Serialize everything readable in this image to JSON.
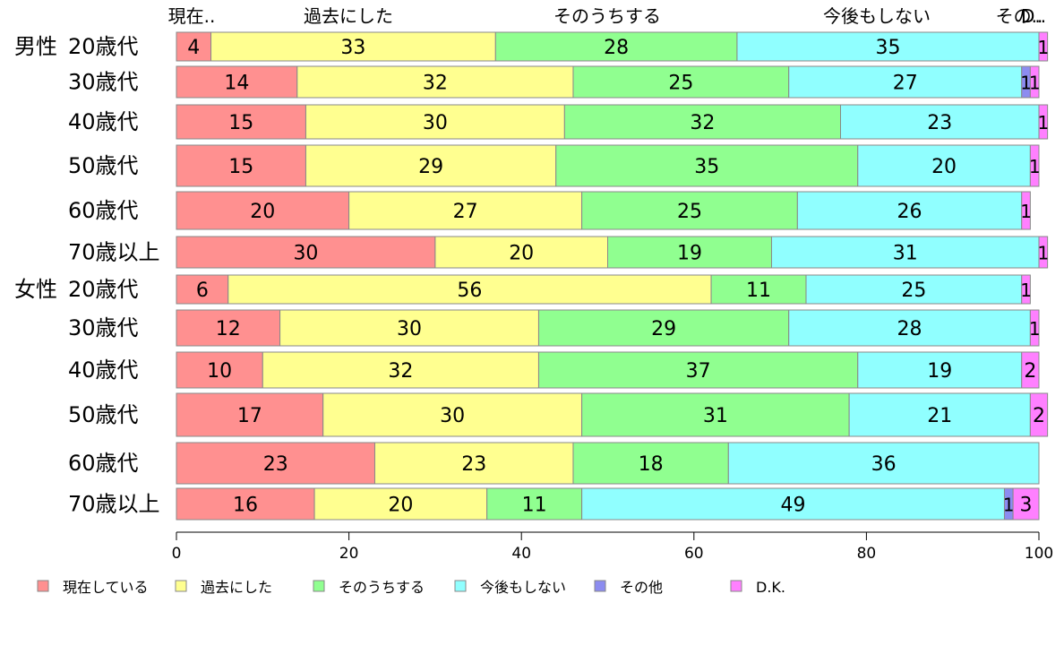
{
  "chart_data": {
    "type": "bar",
    "orientation": "horizontal",
    "stacked": true,
    "title": "",
    "xlabel": "",
    "ylabel": "",
    "xlim": [
      0,
      100
    ],
    "x_ticks": [
      "0",
      "20",
      "40",
      "60",
      "80",
      "100"
    ],
    "grid": false,
    "legend_position": "bottom",
    "header_labels": [
      "現在..",
      "過去にした",
      "そのうちする",
      "今後もしない",
      "その..",
      "D.."
    ],
    "rows": [
      {
        "group": "男性",
        "age": "20歳代"
      },
      {
        "group": "",
        "age": "30歳代"
      },
      {
        "group": "",
        "age": "40歳代"
      },
      {
        "group": "",
        "age": "50歳代"
      },
      {
        "group": "",
        "age": "60歳代"
      },
      {
        "group": "",
        "age": "70歳以上"
      },
      {
        "group": "女性",
        "age": "20歳代"
      },
      {
        "group": "",
        "age": "30歳代"
      },
      {
        "group": "",
        "age": "40歳代"
      },
      {
        "group": "",
        "age": "50歳代"
      },
      {
        "group": "",
        "age": "60歳代"
      },
      {
        "group": "",
        "age": "70歳以上"
      }
    ],
    "series": [
      {
        "name": "現在している",
        "color": "#ff9090",
        "values": [
          4,
          14,
          15,
          15,
          20,
          30,
          6,
          12,
          10,
          17,
          23,
          16
        ]
      },
      {
        "name": "過去にした",
        "color": "#ffff90",
        "values": [
          33,
          32,
          30,
          29,
          27,
          20,
          56,
          30,
          32,
          30,
          23,
          20
        ]
      },
      {
        "name": "そのうちする",
        "color": "#90ff90",
        "values": [
          28,
          25,
          32,
          35,
          25,
          19,
          11,
          29,
          37,
          31,
          18,
          11
        ]
      },
      {
        "name": "今後もしない",
        "color": "#90ffff",
        "values": [
          35,
          27,
          23,
          20,
          26,
          31,
          25,
          28,
          19,
          21,
          36,
          49
        ]
      },
      {
        "name": "その他",
        "color": "#8c8cf0",
        "values": [
          0,
          1,
          0,
          0,
          0,
          0,
          0,
          0,
          0,
          0,
          0,
          1
        ]
      },
      {
        "name": "D.K.",
        "color": "#ff80ff",
        "values": [
          1,
          1,
          1,
          1,
          1,
          1,
          1,
          1,
          2,
          2,
          0,
          3
        ]
      }
    ]
  }
}
